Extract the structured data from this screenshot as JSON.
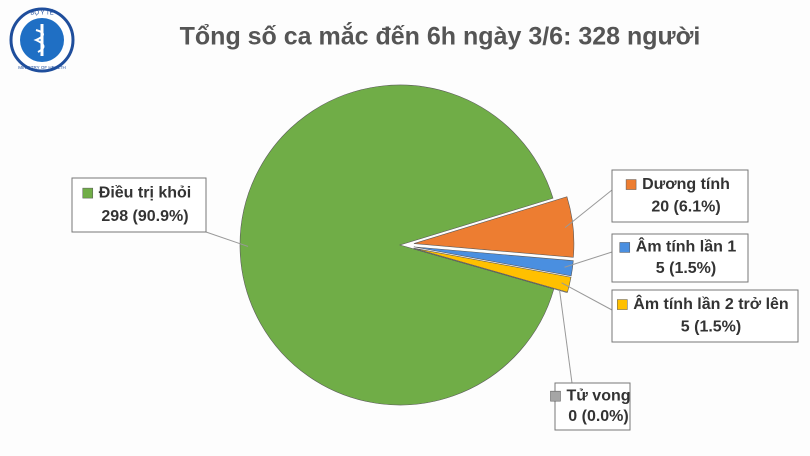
{
  "logo": {
    "top": "BỘ Y TẾ",
    "bottom": "MINISTRY OF HEALTH"
  },
  "chart_data": {
    "type": "pie",
    "title": "Tổng số ca mắc đến 6h ngày 3/6: 328 người",
    "categories": [
      "Điều trị khỏi",
      "Dương tính",
      "Âm tính lần 1",
      "Âm tính lần 2 trở lên",
      "Tử vong"
    ],
    "values": [
      298,
      20,
      5,
      5,
      0
    ],
    "value_labels": [
      "298 (90.9%)",
      "20 (6.1%)",
      "5 (1.5%)",
      "5 (1.5%)",
      "0 (0.0%)"
    ],
    "colors": [
      "#70ad47",
      "#ed7d31",
      "#4a8fe0",
      "#ffc000",
      "#a5a5a5"
    ]
  }
}
